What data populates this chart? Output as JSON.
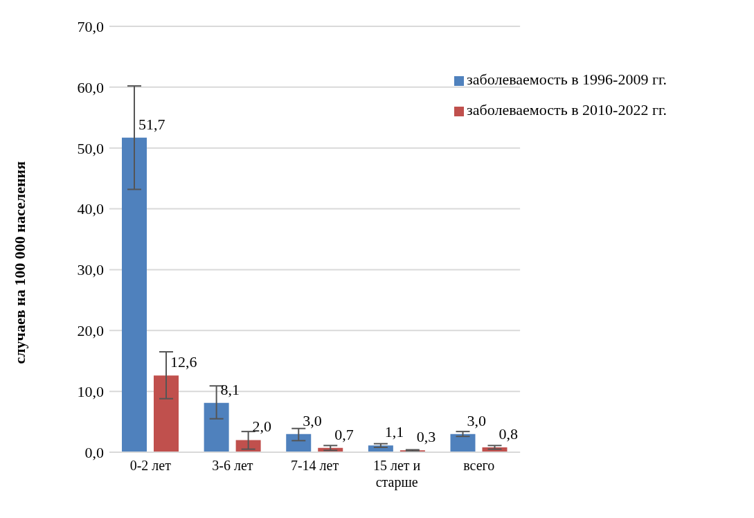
{
  "chart_data": {
    "type": "bar",
    "ylabel": "случаев на 100 000 населения",
    "categories": [
      "0-2 лет",
      "3-6 лет",
      "7-14 лет",
      "15 лет и старше",
      "всего"
    ],
    "series": [
      {
        "name": "заболеваемость в 1996-2009  гг.",
        "color": "#4f81bd",
        "values": [
          51.7,
          8.1,
          3.0,
          1.1,
          3.0
        ],
        "value_labels": [
          "51,7",
          "8,1",
          "3,0",
          "1,1",
          "3,0"
        ],
        "errors": [
          [
            43.2,
            60.2
          ],
          [
            5.5,
            10.9
          ],
          [
            1.9,
            3.9
          ],
          [
            0.8,
            1.4
          ],
          [
            2.6,
            3.4
          ]
        ]
      },
      {
        "name": "заболеваемость в 2010-2022  гг.",
        "color": "#c0504d",
        "values": [
          12.6,
          2.0,
          0.7,
          0.3,
          0.8
        ],
        "value_labels": [
          "12,6",
          "2,0",
          "0,7",
          "0,3",
          "0,8"
        ],
        "errors": [
          [
            8.8,
            16.5
          ],
          [
            0.5,
            3.4
          ],
          [
            0.3,
            1.1
          ],
          [
            0.2,
            0.4
          ],
          [
            0.5,
            1.1
          ]
        ]
      }
    ],
    "ylim": [
      0,
      70
    ],
    "yticks": [
      {
        "value": 0,
        "label": "0,0"
      },
      {
        "value": 10,
        "label": "10,0"
      },
      {
        "value": 20,
        "label": "20,0"
      },
      {
        "value": 30,
        "label": "30,0"
      },
      {
        "value": 40,
        "label": "40,0"
      },
      {
        "value": 50,
        "label": "50,0"
      },
      {
        "value": 60,
        "label": "60,0"
      },
      {
        "value": 70,
        "label": "70,0"
      }
    ],
    "grid": "y",
    "legend": "top right"
  }
}
